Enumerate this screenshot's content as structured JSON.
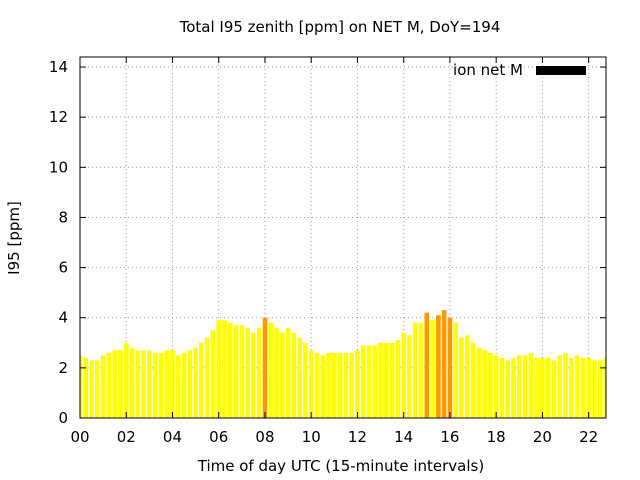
{
  "chart_data": {
    "type": "bar",
    "title": "Total I95 zenith [ppm] on NET M, DoY=194",
    "xlabel": "Time of day UTC (15-minute intervals)",
    "ylabel": "I95 [ppm]",
    "legend": {
      "label": "ion net M",
      "color": "#000000",
      "placement": "top-right"
    },
    "xlim": [
      0,
      22.75
    ],
    "ylim": [
      0,
      14.4
    ],
    "x_ticks": [
      "00",
      "02",
      "04",
      "06",
      "08",
      "10",
      "12",
      "14",
      "16",
      "18",
      "20",
      "22"
    ],
    "y_ticks": [
      "0",
      "2",
      "4",
      "6",
      "8",
      "10",
      "12",
      "14"
    ],
    "grid": true,
    "bar_colors": {
      "normal": "#ffff00",
      "elevated": "#ff9900"
    },
    "elevated_threshold": 4.0,
    "interval_hours": 0.25,
    "values": [
      2.5,
      2.4,
      2.3,
      2.3,
      2.5,
      2.6,
      2.7,
      2.7,
      3.0,
      2.8,
      2.7,
      2.7,
      2.7,
      2.6,
      2.6,
      2.7,
      2.7,
      2.5,
      2.6,
      2.7,
      2.8,
      3.0,
      3.2,
      3.5,
      3.9,
      3.9,
      3.8,
      3.7,
      3.7,
      3.6,
      3.4,
      3.6,
      4.0,
      3.8,
      3.6,
      3.4,
      3.6,
      3.4,
      3.2,
      3.0,
      2.7,
      2.6,
      2.5,
      2.6,
      2.6,
      2.6,
      2.6,
      2.6,
      2.7,
      2.9,
      2.9,
      2.9,
      3.0,
      3.0,
      3.0,
      3.1,
      3.4,
      3.3,
      3.8,
      3.8,
      4.2,
      3.9,
      4.1,
      4.3,
      4.0,
      3.8,
      3.2,
      3.3,
      3.0,
      2.8,
      2.7,
      2.6,
      2.5,
      2.4,
      2.3,
      2.4,
      2.5,
      2.5,
      2.6,
      2.4,
      2.4,
      2.4,
      2.3,
      2.5,
      2.6,
      2.4,
      2.5,
      2.4,
      2.4,
      2.3,
      2.3,
      2.4
    ]
  }
}
